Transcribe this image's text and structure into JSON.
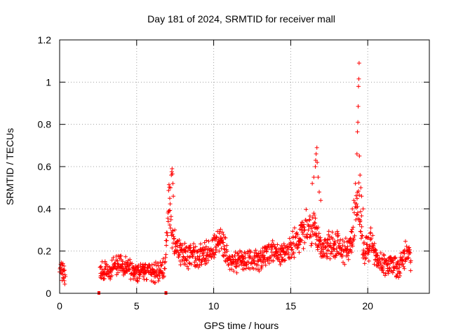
{
  "chart_data": {
    "type": "scatter",
    "title": "Day 181 of 2024, SRMTID for receiver mall",
    "xlabel": "GPS time / hours",
    "ylabel": "SRMTID / TECUs",
    "xlim": [
      0,
      24
    ],
    "ylim": [
      0,
      1.2
    ],
    "x_ticks": [
      0,
      5,
      10,
      15,
      20
    ],
    "y_ticks": [
      0,
      0.2,
      0.4,
      0.6,
      0.8,
      1,
      1.2
    ],
    "x_tick_labels": [
      "0",
      "5",
      "10",
      "15",
      "20"
    ],
    "y_tick_labels": [
      "0",
      "0.2",
      "0.4",
      "0.6",
      "0.8",
      "1",
      "1.2"
    ],
    "grid": true,
    "marker": "+",
    "series": [
      {
        "name": "SRMTID",
        "color": "#ff0000",
        "profile": [
          [
            0.0,
            0.13
          ],
          [
            0.3,
            0.09
          ],
          [
            2.7,
            0.1
          ],
          [
            3.5,
            0.12
          ],
          [
            4.0,
            0.14
          ],
          [
            5.0,
            0.1
          ],
          [
            6.0,
            0.09
          ],
          [
            6.8,
            0.12
          ],
          [
            7.1,
            0.45
          ],
          [
            7.3,
            0.25
          ],
          [
            8.0,
            0.19
          ],
          [
            9.0,
            0.17
          ],
          [
            10.0,
            0.22
          ],
          [
            10.5,
            0.26
          ],
          [
            11.0,
            0.15
          ],
          [
            12.0,
            0.15
          ],
          [
            13.0,
            0.16
          ],
          [
            13.8,
            0.2
          ],
          [
            14.5,
            0.19
          ],
          [
            15.0,
            0.22
          ],
          [
            15.5,
            0.27
          ],
          [
            16.0,
            0.31
          ],
          [
            16.5,
            0.3
          ],
          [
            17.0,
            0.2
          ],
          [
            17.5,
            0.24
          ],
          [
            18.0,
            0.23
          ],
          [
            18.5,
            0.2
          ],
          [
            19.0,
            0.26
          ],
          [
            19.4,
            0.45
          ],
          [
            19.7,
            0.2
          ],
          [
            20.2,
            0.24
          ],
          [
            20.5,
            0.18
          ],
          [
            21.0,
            0.14
          ],
          [
            22.0,
            0.12
          ],
          [
            22.5,
            0.2
          ],
          [
            22.8,
            0.15
          ]
        ],
        "gaps": [
          [
            0.4,
            2.6
          ]
        ],
        "spikes": [
          [
            7.1,
            0.39
          ],
          [
            7.15,
            0.45
          ],
          [
            7.2,
            0.5
          ],
          [
            7.25,
            0.56
          ],
          [
            7.28,
            0.575
          ],
          [
            7.3,
            0.59
          ],
          [
            7.32,
            0.565
          ],
          [
            7.35,
            0.52
          ],
          [
            7.38,
            0.46
          ],
          [
            16.4,
            0.52
          ],
          [
            16.5,
            0.55
          ],
          [
            16.6,
            0.6
          ],
          [
            16.62,
            0.63
          ],
          [
            16.65,
            0.66
          ],
          [
            16.7,
            0.69
          ],
          [
            16.72,
            0.62
          ],
          [
            16.78,
            0.55
          ],
          [
            16.85,
            0.48
          ],
          [
            16.95,
            0.44
          ],
          [
            19.0,
            0.4
          ],
          [
            19.1,
            0.44
          ],
          [
            19.2,
            0.52
          ],
          [
            19.3,
            0.66
          ],
          [
            19.33,
            0.765
          ],
          [
            19.36,
            0.81
          ],
          [
            19.38,
            0.885
          ],
          [
            19.4,
            0.98
          ],
          [
            19.42,
            1.015
          ],
          [
            19.44,
            1.09
          ],
          [
            19.46,
            0.65
          ],
          [
            19.5,
            0.56
          ],
          [
            19.55,
            0.5
          ],
          [
            19.6,
            0.46
          ],
          [
            19.7,
            0.4
          ]
        ],
        "zero_points": [
          [
            2.55,
            0.0
          ],
          [
            6.9,
            0.0
          ]
        ]
      }
    ]
  }
}
